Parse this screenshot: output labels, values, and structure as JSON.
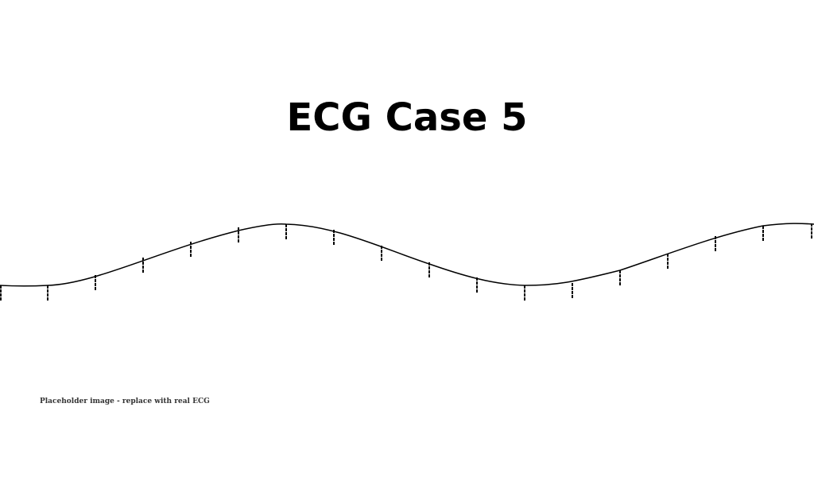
{
  "title": "ECG Case 5",
  "caption": "Placeholder image - replace with real ECG",
  "colors": {
    "background": "#ffffff",
    "trace": "#000000",
    "caption": "#333333"
  }
}
